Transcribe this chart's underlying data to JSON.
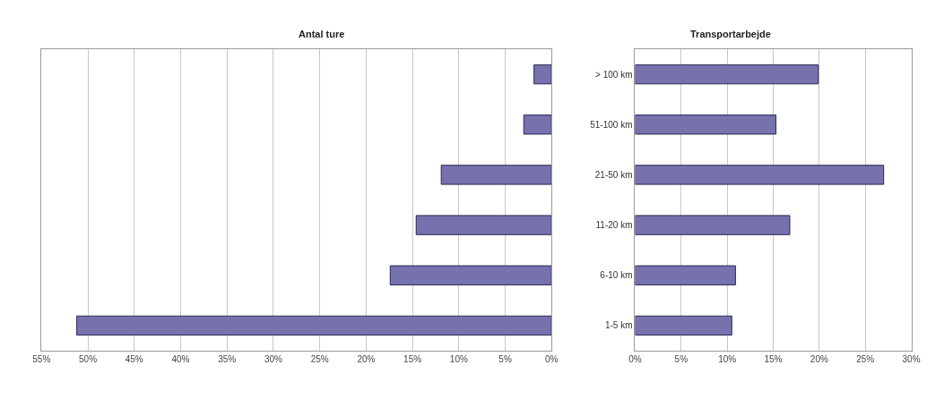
{
  "chart_data": [
    {
      "type": "bar",
      "orientation": "horizontal",
      "title": "Antal ture",
      "categories": [
        null,
        null,
        null,
        null,
        null,
        null
      ],
      "values": [
        1.9,
        3.0,
        11.9,
        14.6,
        17.4,
        51.2
      ],
      "color": "#7572ae",
      "xlim": [
        55,
        0
      ],
      "xticks": [
        {
          "value": 55,
          "label": "55%"
        },
        {
          "value": 50,
          "label": "50%"
        },
        {
          "value": 45,
          "label": "45%"
        },
        {
          "value": 40,
          "label": "40%"
        },
        {
          "value": 35,
          "label": "35%"
        },
        {
          "value": 30,
          "label": "30%"
        },
        {
          "value": 25,
          "label": "25%"
        },
        {
          "value": 20,
          "label": "20%"
        },
        {
          "value": 15,
          "label": "15%"
        },
        {
          "value": 10,
          "label": "10%"
        },
        {
          "value": 5,
          "label": "5%"
        },
        {
          "value": 0,
          "label": "0%"
        }
      ],
      "grid": "x",
      "legend": false,
      "tick_labels": "x"
    },
    {
      "type": "bar",
      "orientation": "horizontal",
      "title": "Transportarbejde",
      "categories": [
        "> 100 km",
        "51-100 km",
        "21-50 km",
        "11-20 km",
        "6-10 km",
        "1-5 km"
      ],
      "values": [
        19.9,
        15.3,
        27.0,
        16.8,
        10.9,
        10.5
      ],
      "color": "#7572ae",
      "xlim": [
        0,
        30
      ],
      "xticks": [
        {
          "value": 0,
          "label": "0%"
        },
        {
          "value": 5,
          "label": "5%"
        },
        {
          "value": 10,
          "label": "10%"
        },
        {
          "value": 15,
          "label": "15%"
        },
        {
          "value": 20,
          "label": "20%"
        },
        {
          "value": 25,
          "label": "25%"
        },
        {
          "value": 30,
          "label": "30%"
        }
      ],
      "grid": "x",
      "legend": false
    }
  ]
}
